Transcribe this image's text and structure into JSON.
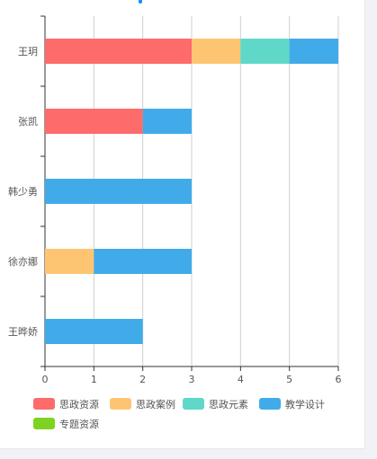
{
  "colors": {
    "思政资源": "#fd6b6b",
    "思政案例": "#fdc572",
    "思政元素": "#5fd8c9",
    "教学设计": "#41abe9",
    "专题资源": "#7ed321"
  },
  "chart_data": {
    "type": "bar",
    "orientation": "horizontal",
    "stacked": true,
    "categories": [
      "王玥",
      "张凯",
      "韩少勇",
      "徐亦娜",
      "王晔娇"
    ],
    "series": [
      {
        "name": "思政资源",
        "values": [
          3,
          2,
          0,
          0,
          0
        ]
      },
      {
        "name": "思政案例",
        "values": [
          1,
          0,
          0,
          1,
          0
        ]
      },
      {
        "name": "思政元素",
        "values": [
          1,
          0,
          0,
          0,
          0
        ]
      },
      {
        "name": "教学设计",
        "values": [
          1,
          1,
          3,
          2,
          2
        ]
      },
      {
        "name": "专题资源",
        "values": [
          0,
          0,
          0,
          0,
          0
        ]
      }
    ],
    "xlim": [
      0,
      6
    ],
    "xticks": [
      "0",
      "1",
      "2",
      "3",
      "4",
      "5",
      "6"
    ],
    "grid": true,
    "legend": "bottom"
  }
}
